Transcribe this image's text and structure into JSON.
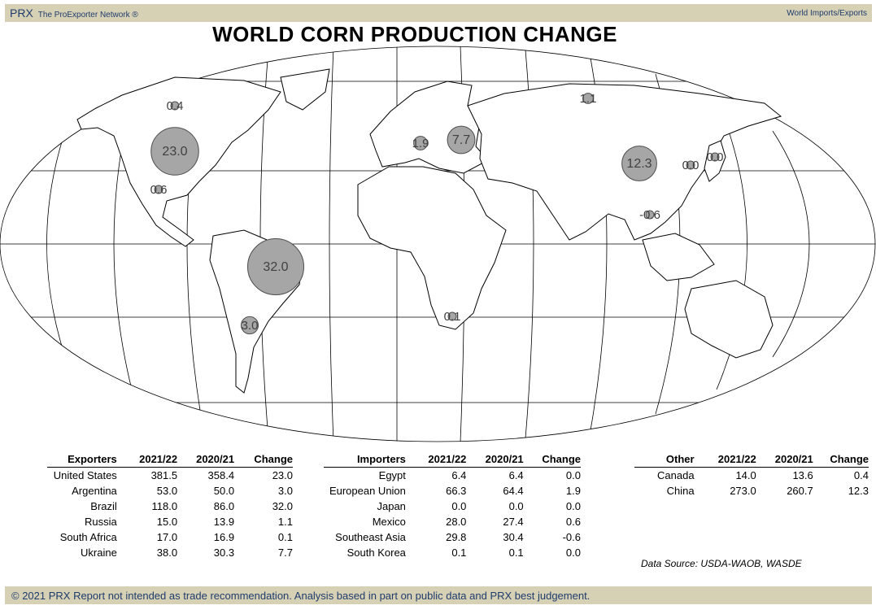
{
  "header": {
    "brand": "PRX",
    "network": "The ProExporter Network ®",
    "section": "World Imports/Exports"
  },
  "title": "WORLD CORN PRODUCTION CHANGE",
  "colors": {
    "bubble_fill": "#a6a6a6",
    "band": "#d6d0b4",
    "brand_text": "#1f3c6e"
  },
  "map_bubbles": [
    {
      "country": "Canada",
      "label": "0.4",
      "value": 0.4
    },
    {
      "country": "United States",
      "label": "23.0",
      "value": 23.0
    },
    {
      "country": "Mexico",
      "label": "0.6",
      "value": 0.6
    },
    {
      "country": "Brazil",
      "label": "32.0",
      "value": 32.0
    },
    {
      "country": "Argentina",
      "label": "3.0",
      "value": 3.0
    },
    {
      "country": "European Union",
      "label": "1.9",
      "value": 1.9
    },
    {
      "country": "Ukraine",
      "label": "7.7",
      "value": 7.7
    },
    {
      "country": "Russia",
      "label": "1.1",
      "value": 1.1
    },
    {
      "country": "China",
      "label": "12.3",
      "value": 12.3
    },
    {
      "country": "South Korea",
      "label": "0.0",
      "value": 0.0
    },
    {
      "country": "Japan",
      "label": "0.0",
      "value": 0.0
    },
    {
      "country": "Southeast Asia",
      "label": "-0.6",
      "value": -0.6
    },
    {
      "country": "South Africa",
      "label": "0.1",
      "value": 0.1
    }
  ],
  "tables": {
    "exporters": {
      "headers": [
        "Exporters",
        "2021/22",
        "2020/21",
        "Change"
      ],
      "rows": [
        [
          "United States",
          "381.5",
          "358.4",
          "23.0"
        ],
        [
          "Argentina",
          "53.0",
          "50.0",
          "3.0"
        ],
        [
          "Brazil",
          "118.0",
          "86.0",
          "32.0"
        ],
        [
          "Russia",
          "15.0",
          "13.9",
          "1.1"
        ],
        [
          "South Africa",
          "17.0",
          "16.9",
          "0.1"
        ],
        [
          "Ukraine",
          "38.0",
          "30.3",
          "7.7"
        ]
      ]
    },
    "importers": {
      "headers": [
        "Importers",
        "2021/22",
        "2020/21",
        "Change"
      ],
      "rows": [
        [
          "Egypt",
          "6.4",
          "6.4",
          "0.0"
        ],
        [
          "European Union",
          "66.3",
          "64.4",
          "1.9"
        ],
        [
          "Japan",
          "0.0",
          "0.0",
          "0.0"
        ],
        [
          "Mexico",
          "28.0",
          "27.4",
          "0.6"
        ],
        [
          "Southeast Asia",
          "29.8",
          "30.4",
          "-0.6"
        ],
        [
          "South Korea",
          "0.1",
          "0.1",
          "0.0"
        ]
      ]
    },
    "other": {
      "headers": [
        "Other",
        "2021/22",
        "2020/21",
        "Change"
      ],
      "rows": [
        [
          "Canada",
          "14.0",
          "13.6",
          "0.4"
        ],
        [
          "China",
          "273.0",
          "260.7",
          "12.3"
        ]
      ]
    }
  },
  "source": "Data Source: USDA-WAOB, WASDE",
  "footer": "© 2021 PRX  Report not intended as trade recommendation. Analysis based in part on public data and PRX best judgement."
}
